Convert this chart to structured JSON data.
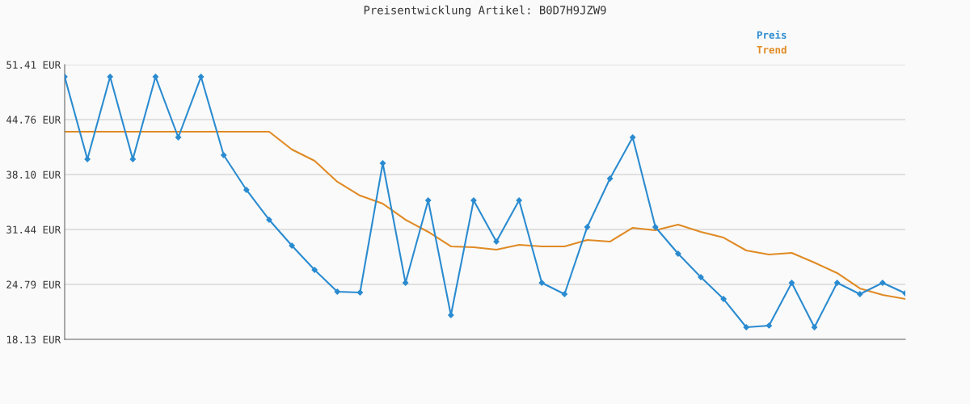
{
  "chart_data": {
    "type": "line",
    "title": "Preisentwicklung Artikel: B0D7H9JZW9",
    "categories": [
      null,
      null,
      null,
      null,
      null,
      null,
      null,
      null,
      null,
      null,
      null,
      null,
      null,
      null,
      null,
      null,
      null,
      null,
      null,
      null,
      null,
      null,
      null,
      null,
      null,
      null,
      null,
      null,
      null,
      null,
      null,
      null,
      null,
      null,
      null,
      null,
      null,
      null
    ],
    "series": [
      {
        "name": "Preis",
        "color": "#2a8bd0",
        "marker": "diamond",
        "values": [
          49.94,
          39.96,
          49.94,
          39.96,
          49.94,
          42.6,
          49.94,
          40.45,
          36.24,
          32.62,
          29.48,
          26.55,
          23.91,
          23.81,
          39.47,
          24.98,
          34.97,
          21.07,
          34.97,
          29.97,
          34.97,
          24.98,
          23.61,
          31.74,
          37.61,
          42.6,
          31.74,
          28.51,
          25.67,
          23.02,
          19.6,
          19.8,
          24.98,
          19.6,
          24.98,
          23.61,
          24.98,
          23.71
        ]
      },
      {
        "name": "Trend",
        "color": "#e08a24",
        "marker": "none",
        "values": [
          43.29,
          43.29,
          43.29,
          43.29,
          43.29,
          43.29,
          43.29,
          43.29,
          43.29,
          43.29,
          41.13,
          39.76,
          37.22,
          35.55,
          34.57,
          32.62,
          31.15,
          29.39,
          29.29,
          29.0,
          29.58,
          29.39,
          29.39,
          30.17,
          29.97,
          31.64,
          31.34,
          32.03,
          31.15,
          30.46,
          28.9,
          28.41,
          28.6,
          27.43,
          26.16,
          24.3,
          23.51,
          23.02
        ]
      }
    ],
    "ylim": [
      18.13,
      51.41
    ],
    "yticks": [
      {
        "value": 18.13,
        "label": "18.13 EUR"
      },
      {
        "value": 24.79,
        "label": "24.79 EUR"
      },
      {
        "value": 31.44,
        "label": "31.44 EUR"
      },
      {
        "value": 38.1,
        "label": "38.10 EUR"
      },
      {
        "value": 44.76,
        "label": "44.76 EUR"
      },
      {
        "value": 51.41,
        "label": "51.41 EUR"
      }
    ],
    "grid": "y",
    "legend": "top right",
    "tick_labels": "y"
  }
}
